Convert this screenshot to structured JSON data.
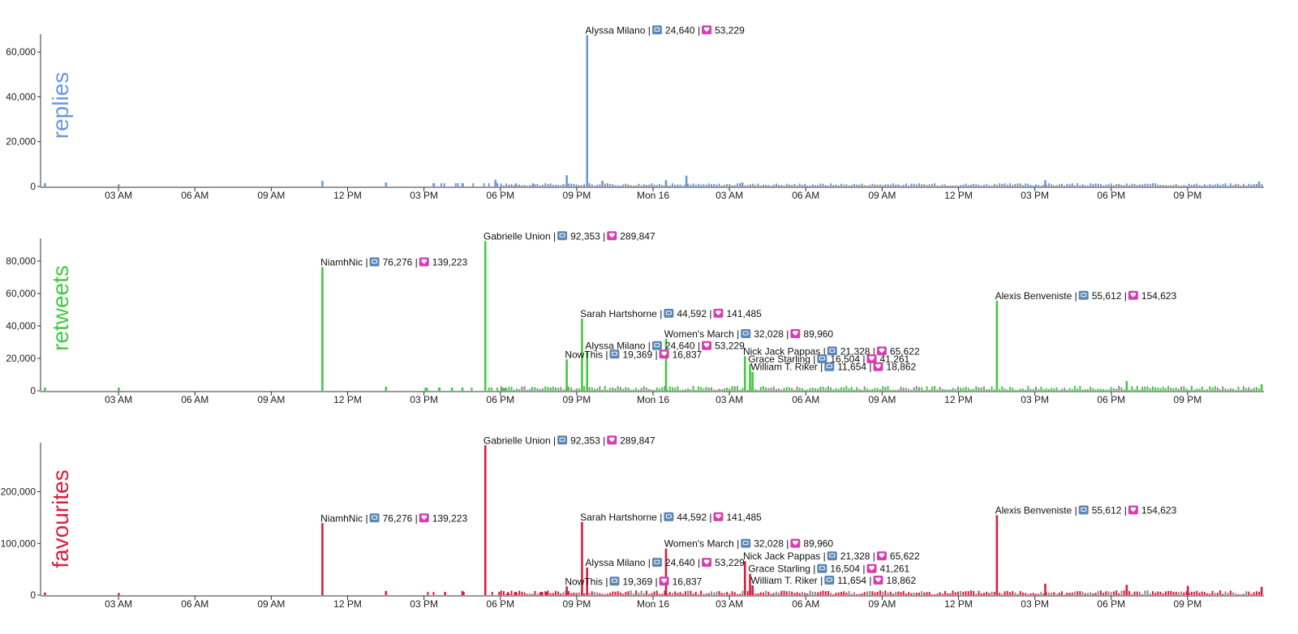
{
  "colors": {
    "replies": "#6a98e0",
    "retweets": "#43c943",
    "favourites": "#d51f3f",
    "muted": "#8c8c8c",
    "retweet_icon": "#5b86b5",
    "favourite_icon": "#d63fb3"
  },
  "chart_data": {
    "type": "bar",
    "x_axis": {
      "ticks": [
        "03 AM",
        "06 AM",
        "09 AM",
        "12 PM",
        "03 PM",
        "06 PM",
        "09 PM",
        "Mon 16",
        "03 AM",
        "06 AM",
        "09 AM",
        "12 PM",
        "03 PM",
        "06 PM",
        "09 PM"
      ],
      "tick_hours": [
        3,
        6,
        9,
        12,
        15,
        18,
        21,
        24,
        27,
        30,
        33,
        36,
        39,
        42,
        45
      ],
      "domain_hours": [
        0,
        48
      ]
    },
    "series": [
      {
        "name": "replies",
        "color": "#6a98e0",
        "ylim": [
          0,
          68000
        ],
        "yticks": [
          0,
          20000,
          40000,
          60000
        ],
        "ytick_labels": [
          "0",
          "20,000",
          "40,000",
          "60,000"
        ],
        "points": [
          {
            "h": 0.1,
            "v": 1500
          },
          {
            "h": 3.0,
            "v": 900
          },
          {
            "h": 11.0,
            "v": 2500
          },
          {
            "h": 13.5,
            "v": 1800
          },
          {
            "h": 16.5,
            "v": 1500
          },
          {
            "h": 17.8,
            "v": 3000
          },
          {
            "h": 20.6,
            "v": 5000
          },
          {
            "h": 21.4,
            "v": 67500
          },
          {
            "h": 22.0,
            "v": 2500
          },
          {
            "h": 24.5,
            "v": 2800
          },
          {
            "h": 25.3,
            "v": 4800
          },
          {
            "h": 27.5,
            "v": 1800
          },
          {
            "h": 39.4,
            "v": 2800
          },
          {
            "h": 47.8,
            "v": 2200
          }
        ],
        "annotations": [
          {
            "h": 21.4,
            "v": 67500,
            "name": "Alyssa Milano",
            "retweets": "24,640",
            "favourites": "53,229"
          }
        ]
      },
      {
        "name": "retweets",
        "color": "#43c943",
        "ylim": [
          0,
          94000
        ],
        "yticks": [
          0,
          20000,
          40000,
          60000,
          80000
        ],
        "ytick_labels": [
          "0",
          "20,000",
          "40,000",
          "60,000",
          "80,000"
        ],
        "points": [
          {
            "h": 0.1,
            "v": 2000
          },
          {
            "h": 3.0,
            "v": 2000
          },
          {
            "h": 11.0,
            "v": 76276
          },
          {
            "h": 13.5,
            "v": 2500
          },
          {
            "h": 16.5,
            "v": 2000
          },
          {
            "h": 17.4,
            "v": 92353
          },
          {
            "h": 20.6,
            "v": 19369
          },
          {
            "h": 21.2,
            "v": 44592
          },
          {
            "h": 21.4,
            "v": 24640
          },
          {
            "h": 24.5,
            "v": 32028
          },
          {
            "h": 27.6,
            "v": 21328
          },
          {
            "h": 27.8,
            "v": 16504
          },
          {
            "h": 27.9,
            "v": 11654
          },
          {
            "h": 37.5,
            "v": 55612
          },
          {
            "h": 42.6,
            "v": 6000
          },
          {
            "h": 47.9,
            "v": 4000
          }
        ],
        "annotations": [
          {
            "h": 11.0,
            "v": 76276,
            "name": "NiamhNic",
            "retweets": "76,276",
            "favourites": "139,223"
          },
          {
            "h": 17.4,
            "v": 92353,
            "name": "Gabrielle Union",
            "retweets": "92,353",
            "favourites": "289,847"
          },
          {
            "h": 37.5,
            "v": 55612,
            "name": "Alexis Benveniste",
            "retweets": "55,612",
            "favourites": "154,623"
          },
          {
            "h": 21.2,
            "v": 44592,
            "name": "Sarah Hartshorne",
            "retweets": "44,592",
            "favourites": "141,485"
          },
          {
            "h": 24.5,
            "v": 32028,
            "name": "Women's March",
            "retweets": "32,028",
            "favourites": "89,960"
          },
          {
            "h": 21.4,
            "v": 24640,
            "name": "Alyssa Milano",
            "retweets": "24,640",
            "favourites": "53,229"
          },
          {
            "h": 27.6,
            "v": 21328,
            "name": "Nick Jack Pappas",
            "retweets": "21,328",
            "favourites": "65,622"
          },
          {
            "h": 20.6,
            "v": 19369,
            "name": "NowThis",
            "retweets": "19,369",
            "favourites": "16,837"
          },
          {
            "h": 27.8,
            "v": 16504,
            "name": "Grace Starling",
            "retweets": "16,504",
            "favourites": "41,261"
          },
          {
            "h": 27.9,
            "v": 11654,
            "name": "William T. Riker",
            "retweets": "11,654",
            "favourites": "18,862"
          }
        ]
      },
      {
        "name": "favourites",
        "color": "#d51f3f",
        "ylim": [
          0,
          295000
        ],
        "yticks": [
          0,
          100000,
          200000
        ],
        "ytick_labels": [
          "0",
          "100,000",
          "200,000"
        ],
        "points": [
          {
            "h": 0.1,
            "v": 5000
          },
          {
            "h": 3.0,
            "v": 4000
          },
          {
            "h": 11.0,
            "v": 139223
          },
          {
            "h": 13.5,
            "v": 8000
          },
          {
            "h": 16.5,
            "v": 8000
          },
          {
            "h": 17.4,
            "v": 289847
          },
          {
            "h": 20.6,
            "v": 16837
          },
          {
            "h": 21.2,
            "v": 141485
          },
          {
            "h": 21.4,
            "v": 53229
          },
          {
            "h": 24.5,
            "v": 89960
          },
          {
            "h": 27.6,
            "v": 65622
          },
          {
            "h": 27.8,
            "v": 41261
          },
          {
            "h": 27.9,
            "v": 18862
          },
          {
            "h": 37.5,
            "v": 154623
          },
          {
            "h": 39.4,
            "v": 22000
          },
          {
            "h": 42.6,
            "v": 20000
          },
          {
            "h": 45.0,
            "v": 18000
          },
          {
            "h": 47.9,
            "v": 16000
          }
        ],
        "annotations": [
          {
            "h": 17.4,
            "v": 289847,
            "name": "Gabrielle Union",
            "retweets": "92,353",
            "favourites": "289,847"
          },
          {
            "h": 11.0,
            "v": 139223,
            "name": "NiamhNic",
            "retweets": "76,276",
            "favourites": "139,223"
          },
          {
            "h": 21.2,
            "v": 141485,
            "name": "Sarah Hartshorne",
            "retweets": "44,592",
            "favourites": "141,485"
          },
          {
            "h": 37.5,
            "v": 154623,
            "name": "Alexis Benveniste",
            "retweets": "55,612",
            "favourites": "154,623"
          },
          {
            "h": 24.5,
            "v": 89960,
            "name": "Women's March",
            "retweets": "32,028",
            "favourites": "89,960"
          },
          {
            "h": 27.6,
            "v": 65622,
            "name": "Nick Jack Pappas",
            "retweets": "21,328",
            "favourites": "65,622"
          },
          {
            "h": 21.4,
            "v": 53229,
            "name": "Alyssa Milano",
            "retweets": "24,640",
            "favourites": "53,229"
          },
          {
            "h": 27.8,
            "v": 41261,
            "name": "Grace Starling",
            "retweets": "16,504",
            "favourites": "41,261"
          },
          {
            "h": 27.9,
            "v": 18862,
            "name": "William T. Riker",
            "retweets": "11,654",
            "favourites": "18,862"
          },
          {
            "h": 20.6,
            "v": 16837,
            "name": "NowThis",
            "retweets": "19,369",
            "favourites": "16,837"
          }
        ]
      }
    ]
  }
}
